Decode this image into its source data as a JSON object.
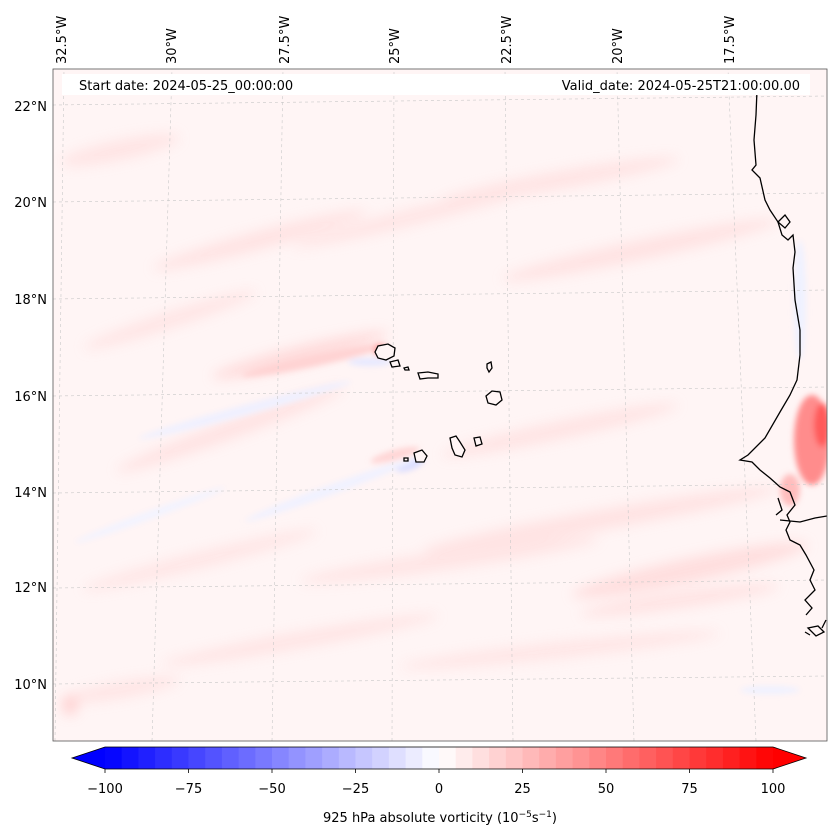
{
  "map": {
    "start_date_label": "Start date: 2024-05-25_00:00:00",
    "valid_date_label": "Valid_date: 2024-05-25T21:00:00.00",
    "lon_labels": [
      "32.5°W",
      "30°W",
      "27.5°W",
      "25°W",
      "22.5°W",
      "20°W",
      "17.5°W"
    ],
    "lat_labels": [
      "22°N",
      "20°N",
      "18°N",
      "16°N",
      "14°N",
      "12°N",
      "10°N"
    ],
    "background_color": "#fff5f5",
    "coastline_color": "#000000"
  },
  "colorbar": {
    "label_main": "925 hPa absolute vorticity (10",
    "label_exp1": "−5",
    "label_mid": "s",
    "label_exp2": "−1",
    "label_end": ")",
    "ticks": [
      "−100",
      "−75",
      "−50",
      "−25",
      "0",
      "25",
      "50",
      "75",
      "100"
    ],
    "min": -100,
    "max": 100,
    "levels": 40,
    "extend": "both",
    "neg_color": "#0000ff",
    "pos_color": "#ff0000"
  }
}
